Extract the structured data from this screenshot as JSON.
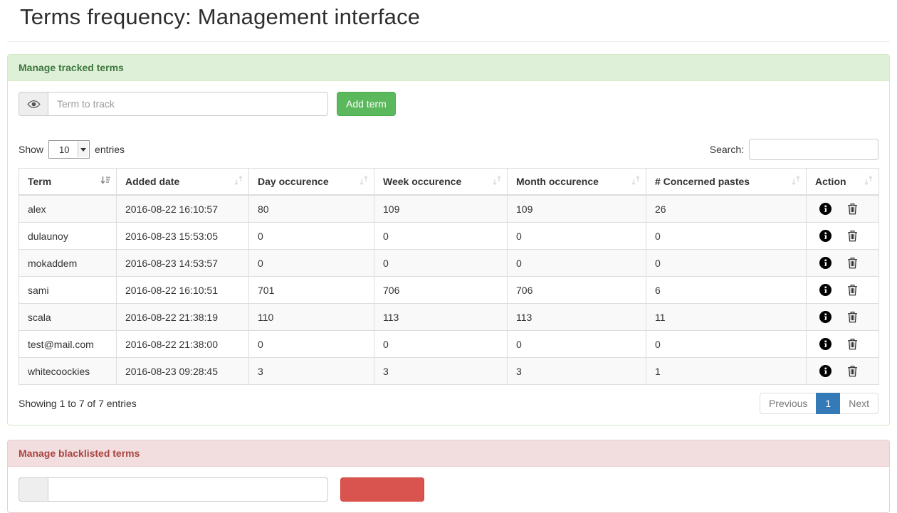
{
  "page": {
    "title": "Terms frequency: Management interface"
  },
  "colors": {
    "success_heading_bg": "#dff0d8",
    "success_border": "#d6e9c6",
    "success_text": "#3c763d",
    "danger_heading_bg": "#f2dede",
    "danger_border": "#ebccd1",
    "danger_text": "#a94442",
    "btn_success": "#5cb85c",
    "btn_danger": "#d9534f",
    "active_page": "#337ab7"
  },
  "tracked_panel": {
    "title": "Manage tracked terms",
    "term_input_placeholder": "Term to track",
    "add_button_label": "Add term",
    "show_label": "Show",
    "entries_label": "entries",
    "page_length": "10",
    "search_label": "Search:",
    "search_value": "",
    "table": {
      "columns": [
        "Term",
        "Added date",
        "Day occurence",
        "Week occurence",
        "Month occurence",
        "# Concerned pastes",
        "Action"
      ],
      "rows": [
        {
          "term": "alex",
          "added": "2016-08-22 16:10:57",
          "day": "80",
          "week": "109",
          "month": "109",
          "pastes": "26"
        },
        {
          "term": "dulaunoy",
          "added": "2016-08-23 15:53:05",
          "day": "0",
          "week": "0",
          "month": "0",
          "pastes": "0"
        },
        {
          "term": "mokaddem",
          "added": "2016-08-23 14:53:57",
          "day": "0",
          "week": "0",
          "month": "0",
          "pastes": "0"
        },
        {
          "term": "sami",
          "added": "2016-08-22 16:10:51",
          "day": "701",
          "week": "706",
          "month": "706",
          "pastes": "6"
        },
        {
          "term": "scala",
          "added": "2016-08-22 21:38:19",
          "day": "110",
          "week": "113",
          "month": "113",
          "pastes": "11"
        },
        {
          "term": "test@mail.com",
          "added": "2016-08-22 21:38:00",
          "day": "0",
          "week": "0",
          "month": "0",
          "pastes": "0"
        },
        {
          "term": "whitecoockies",
          "added": "2016-08-23 09:28:45",
          "day": "3",
          "week": "3",
          "month": "3",
          "pastes": "1"
        }
      ]
    },
    "info_text": "Showing 1 to 7 of 7 entries",
    "pagination": {
      "previous_label": "Previous",
      "current_page": "1",
      "next_label": "Next"
    }
  },
  "blacklist_panel": {
    "title": "Manage blacklisted terms",
    "term_input_placeholder": "",
    "add_button_label": ""
  }
}
